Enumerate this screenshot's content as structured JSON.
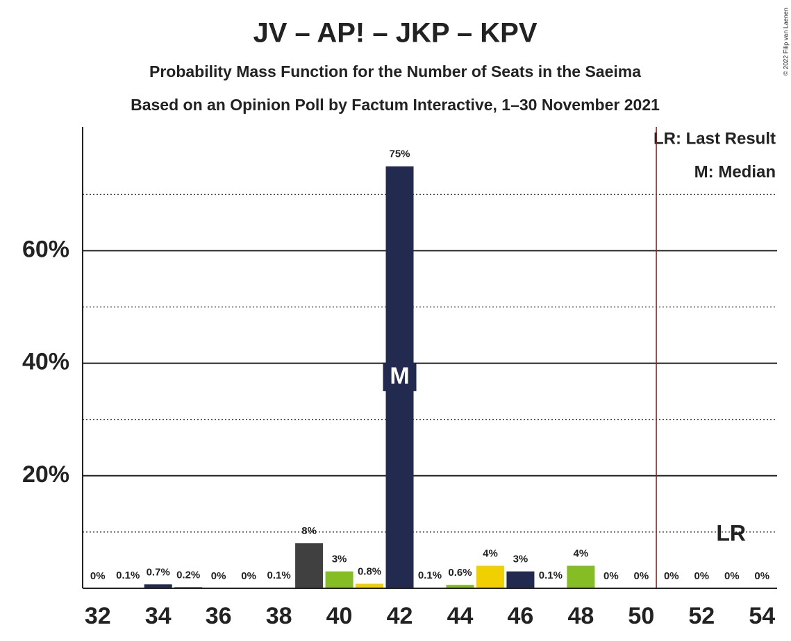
{
  "chart_data": {
    "type": "bar",
    "title": "JV – AP! – JKP – KPV",
    "subtitle": "Probability Mass Function for the Number of Seats in the Saeima",
    "subtitle2": "Based on an Opinion Poll by Factum Interactive, 1–30 November 2021",
    "x": [
      32,
      33,
      34,
      35,
      36,
      37,
      38,
      39,
      40,
      41,
      42,
      43,
      44,
      45,
      46,
      47,
      48,
      49,
      50,
      51,
      52,
      53,
      54
    ],
    "values": [
      0,
      0.1,
      0.7,
      0.2,
      0,
      0,
      0.1,
      8,
      3,
      0.8,
      75,
      0.1,
      0.6,
      4,
      3,
      0.1,
      4,
      0,
      0,
      0,
      0,
      0,
      0
    ],
    "value_labels": [
      "0%",
      "0.1%",
      "0.7%",
      "0.2%",
      "0%",
      "0%",
      "0.1%",
      "8%",
      "3%",
      "0.8%",
      "75%",
      "0.1%",
      "0.6%",
      "4%",
      "3%",
      "0.1%",
      "4%",
      "0%",
      "0%",
      "0%",
      "0%",
      "0%",
      "0%"
    ],
    "colors": [
      "#86bc24",
      "#f0d000",
      "#222a50",
      "#404040",
      "#86bc24",
      "#f0d000",
      "#222a50",
      "#404040",
      "#86bc24",
      "#f0d000",
      "#222a50",
      "#404040",
      "#86bc24",
      "#f0d000",
      "#222a50",
      "#404040",
      "#86bc24",
      "#f0d000",
      "#222a50",
      "#404040",
      "#86bc24",
      "#f0d000",
      "#222a50"
    ],
    "xlim": [
      31.5,
      54.5
    ],
    "xticks": [
      32,
      34,
      36,
      38,
      40,
      42,
      44,
      46,
      48,
      50,
      52,
      54
    ],
    "ylim": [
      0,
      82
    ],
    "yticks": [
      {
        "value": 20,
        "label": "20%"
      },
      {
        "value": 40,
        "label": "40%"
      },
      {
        "value": 60,
        "label": "60%"
      }
    ],
    "minor_yticks": [
      10,
      30,
      50,
      70
    ],
    "median": 42,
    "median_label": "M",
    "last_result_x": 50.5,
    "last_result_label": "LR",
    "legend": [
      "LR: Last Result",
      "M: Median"
    ],
    "copyright": "© 2022 Filip van Laenen"
  }
}
